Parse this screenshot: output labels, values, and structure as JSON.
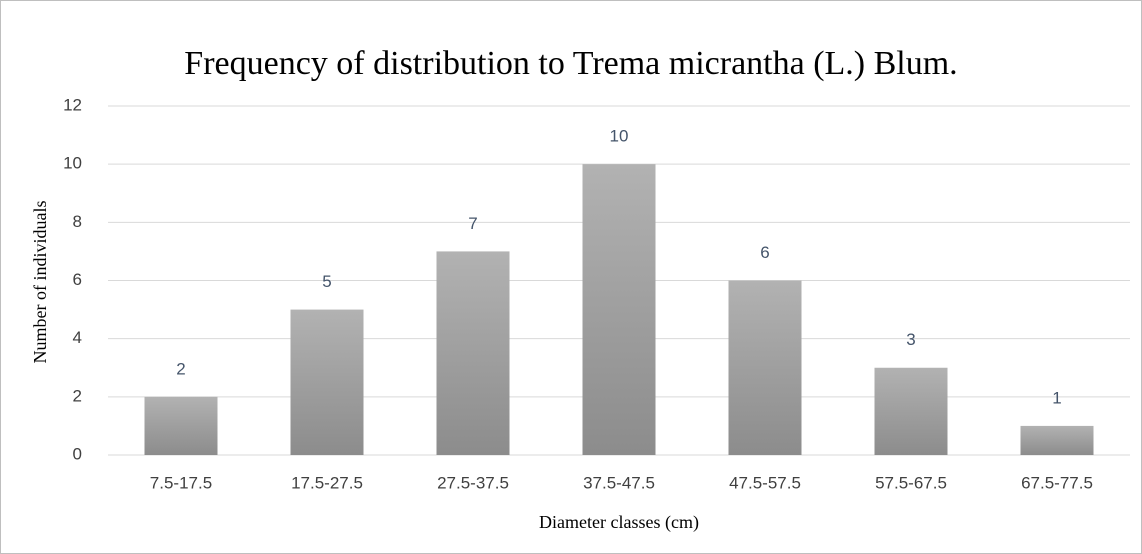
{
  "chart_data": {
    "type": "bar",
    "title": "Frequency of distribution to Trema micrantha (L.) Blum.",
    "x_label": "Diameter classes (cm)",
    "y_label": "Number of individuals",
    "categories": [
      "7.5-17.5",
      "17.5-27.5",
      "27.5-37.5",
      "37.5-47.5",
      "47.5-57.5",
      "57.5-67.5",
      "67.5-77.5"
    ],
    "values": [
      2,
      5,
      7,
      10,
      6,
      3,
      1
    ],
    "color": "#b2b2b2",
    "ylim": [
      0,
      12
    ],
    "yticks": [
      0,
      2,
      4,
      6,
      8,
      10,
      12
    ],
    "grid": true,
    "data_labels": true
  }
}
